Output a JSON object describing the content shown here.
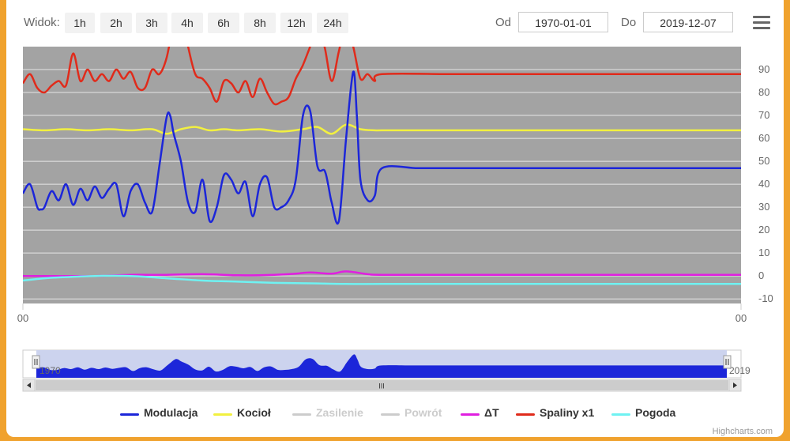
{
  "toolbar": {
    "view_label": "Widok:",
    "ranges": [
      "1h",
      "2h",
      "3h",
      "4h",
      "6h",
      "8h",
      "12h",
      "24h"
    ],
    "from_label": "Od",
    "from_value": "1970-01-01",
    "to_label": "Do",
    "to_value": "2019-12-07"
  },
  "chart_data": {
    "type": "line",
    "title": "",
    "xlabel": "",
    "ylabel": "",
    "x_tick_labels": [
      "00",
      "00"
    ],
    "y_ticks": [
      90,
      80,
      70,
      60,
      50,
      40,
      30,
      20,
      10,
      0,
      -10
    ],
    "ylim": [
      -12,
      100
    ],
    "xlim": [
      0,
      100
    ],
    "plot_background": "#a3a3a3",
    "grid": true,
    "legend_placement": "bottom",
    "series": [
      {
        "name": "Modulacja",
        "color": "#1c26d9",
        "visible": true,
        "x": [
          0,
          1,
          2,
          2.5,
          3,
          4,
          5,
          6,
          7,
          8,
          9,
          10,
          11,
          12,
          13,
          14,
          15,
          16,
          17,
          18,
          19,
          20,
          20.5,
          21,
          22,
          23,
          24,
          25,
          26,
          27,
          28,
          29,
          30,
          31,
          32,
          33,
          34,
          35,
          36,
          37,
          38,
          39,
          40,
          41,
          42,
          42.5,
          43,
          44,
          45,
          46,
          46.5,
          47,
          48,
          49,
          50,
          55,
          60,
          65,
          70,
          75,
          80,
          85,
          90,
          95,
          100
        ],
        "values": [
          36,
          40,
          30,
          29,
          30,
          37,
          33,
          40,
          31,
          38,
          33,
          39,
          34,
          38,
          40,
          26,
          37,
          40,
          32,
          28,
          48,
          69,
          70,
          62,
          50,
          32,
          28,
          42,
          24,
          30,
          44,
          42,
          36,
          41,
          26,
          40,
          43,
          30,
          30,
          33,
          42,
          70,
          72,
          48,
          46,
          40,
          32,
          24,
          60,
          89,
          70,
          42,
          33,
          35,
          47,
          47,
          47,
          47,
          47,
          47,
          47,
          47,
          47,
          47,
          47
        ]
      },
      {
        "name": "Kocioł",
        "color": "#f2f040",
        "visible": true,
        "x": [
          0,
          3,
          6,
          9,
          12,
          15,
          18,
          20,
          22,
          24,
          26,
          28,
          30,
          33,
          36,
          39,
          41,
          43,
          45,
          47,
          49,
          50,
          55,
          60,
          65,
          70,
          75,
          80,
          85,
          90,
          95,
          100
        ],
        "values": [
          64,
          63.5,
          64,
          63.5,
          64,
          63.5,
          64,
          62,
          64,
          65,
          63.5,
          64,
          63.5,
          64,
          63,
          64,
          65,
          62,
          66,
          64,
          63.5,
          63.5,
          63.5,
          63.5,
          63.5,
          63.5,
          63.5,
          63.5,
          63.5,
          63.5,
          63.5,
          63.5
        ]
      },
      {
        "name": "Zasilenie",
        "color": "#cccccc",
        "visible": false,
        "x": [],
        "values": []
      },
      {
        "name": "Powrót",
        "color": "#cccccc",
        "visible": false,
        "x": [],
        "values": []
      },
      {
        "name": "ΔT",
        "color": "#e01fe0",
        "visible": true,
        "x": [
          0,
          5,
          10,
          15,
          20,
          25,
          30,
          35,
          38,
          40,
          43,
          45,
          48,
          50,
          60,
          70,
          80,
          90,
          100
        ],
        "values": [
          0,
          0,
          0,
          0.5,
          0.5,
          0.8,
          0.3,
          0.5,
          1,
          1.5,
          1,
          2,
          0.8,
          0.5,
          0.5,
          0.5,
          0.5,
          0.5,
          0.5
        ]
      },
      {
        "name": "Spaliny x1",
        "color": "#e02b1b",
        "visible": true,
        "x": [
          0,
          1,
          2,
          3,
          4,
          5,
          6,
          7,
          8,
          9,
          10,
          11,
          12,
          13,
          14,
          15,
          16,
          17,
          18,
          19,
          20,
          21,
          22,
          23,
          24,
          25,
          26,
          27,
          28,
          29,
          30,
          31,
          32,
          33,
          34,
          35,
          36,
          37,
          38,
          39,
          40,
          41,
          42,
          43,
          44,
          45,
          46,
          47,
          48,
          49,
          50,
          60,
          70,
          80,
          90,
          100
        ],
        "values": [
          84,
          88,
          82,
          80,
          83,
          85,
          83,
          97,
          85,
          90,
          85,
          88,
          85,
          90,
          86,
          89,
          82,
          82,
          90,
          88,
          95,
          110,
          115,
          100,
          88,
          86,
          82,
          76,
          85,
          84,
          80,
          85,
          78,
          86,
          80,
          75,
          76,
          78,
          86,
          92,
          100,
          108,
          100,
          85,
          98,
          110,
          100,
          86,
          88,
          85,
          88,
          88,
          88,
          88,
          88,
          88
        ]
      },
      {
        "name": "Pogoda",
        "color": "#6ff2f2",
        "visible": true,
        "x": [
          0,
          3,
          6,
          10,
          15,
          20,
          25,
          30,
          35,
          40,
          45,
          50,
          60,
          70,
          80,
          90,
          100
        ],
        "values": [
          -2,
          -1,
          -0.5,
          0,
          0,
          -1,
          -2,
          -2.5,
          -3,
          -3.2,
          -3.5,
          -3.5,
          -3.5,
          -3.5,
          -3.5,
          -3.5,
          -3.5
        ]
      }
    ],
    "navigator": {
      "start_label": "1970",
      "end_label": "2019",
      "scroll_glyph": "III"
    }
  },
  "credits": "Highcharts.com"
}
